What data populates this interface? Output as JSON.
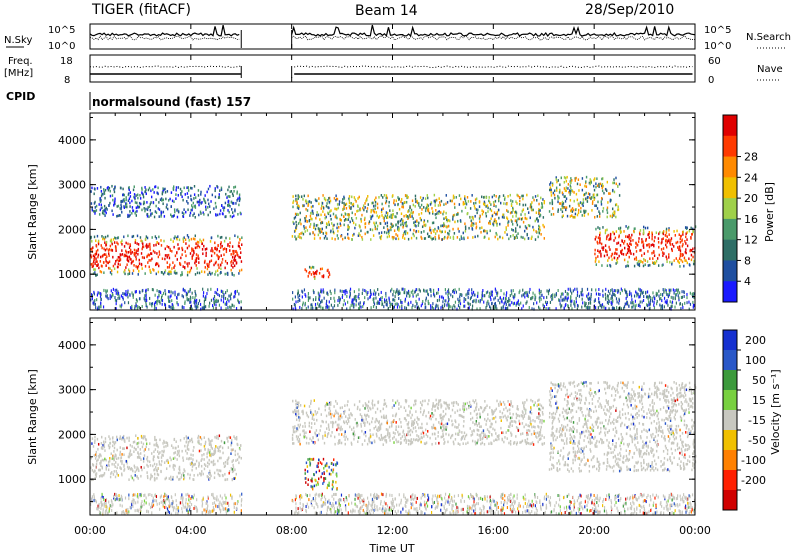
{
  "header": {
    "radar": "TIGER (fitACF)",
    "beam": "Beam 14",
    "date": "28/Sep/2010"
  },
  "sky_panel": {
    "left_label": "N.Sky",
    "right_label": "N.Search",
    "right_label_style": "dotted",
    "left_ticks": [
      "10^5",
      "10^0"
    ],
    "right_ticks": [
      "10^5",
      "10^0"
    ]
  },
  "freq_panel": {
    "left_label_line1": "Freq.",
    "left_label_line2": "[MHz]",
    "right_label": "Nave",
    "right_label_style": "dotted",
    "left_ticks": [
      "18",
      "8"
    ],
    "right_ticks": [
      "60",
      "0"
    ]
  },
  "cpid": {
    "label": "CPID",
    "program": "normalsound (fast) 157"
  },
  "colors": {
    "power_scale": [
      "#1a1aff",
      "#1f4fa0",
      "#2e6e66",
      "#4a9a6a",
      "#9fd04a",
      "#f0c000",
      "#ff8a00",
      "#ff3a00",
      "#e00000"
    ],
    "velocity_scale": [
      "#1530d0",
      "#2a58c8",
      "#3c9a3c",
      "#78d040",
      "#c8c8c0",
      "#f0c000",
      "#ff8000",
      "#ff2000",
      "#d00000"
    ]
  },
  "chart_data": [
    {
      "type": "heatmap",
      "panel": "power",
      "ylabel": "Slant Range [km]",
      "y_ticks": [
        "1000",
        "2000",
        "3000",
        "4000"
      ],
      "ylim": [
        200,
        4600
      ],
      "xlim_hours": [
        0,
        24
      ],
      "colorbar_label": "Power [dB]",
      "colorbar_ticks": [
        "4",
        "8",
        "12",
        "16",
        "20",
        "24",
        "28"
      ],
      "data_gap_hours": [
        6,
        8
      ],
      "scatter_regions": [
        {
          "start": 0,
          "end": 6,
          "range_low": 1000,
          "range_high": 1900,
          "level": "high"
        },
        {
          "start": 0,
          "end": 6,
          "range_low": 2300,
          "range_high": 3000,
          "level": "low"
        },
        {
          "start": 8,
          "end": 18,
          "range_low": 1800,
          "range_high": 2800,
          "level": "mid"
        },
        {
          "start": 8.5,
          "end": 9.5,
          "range_low": 900,
          "range_high": 1200,
          "level": "high"
        },
        {
          "start": 18.2,
          "end": 21,
          "range_low": 2300,
          "range_high": 3200,
          "level": "mid"
        },
        {
          "start": 20,
          "end": 24,
          "range_low": 1200,
          "range_high": 2100,
          "level": "high"
        }
      ]
    },
    {
      "type": "heatmap",
      "panel": "velocity",
      "ylabel": "Slant Range [km]",
      "y_ticks": [
        "1000",
        "2000",
        "3000",
        "4000"
      ],
      "ylim": [
        200,
        4600
      ],
      "xlim_hours": [
        0,
        24
      ],
      "colorbar_label": "Velocity [m s⁻¹]",
      "colorbar_ticks": [
        "200",
        "100",
        "50",
        "15",
        "-15",
        "-50",
        "-100",
        "-200"
      ],
      "x_ticks": [
        "00:00",
        "04:00",
        "08:00",
        "12:00",
        "16:00",
        "20:00",
        "00:00"
      ],
      "xlabel": "Time UT",
      "data_gap_hours": [
        6,
        8
      ],
      "scatter_regions": [
        {
          "start": 0,
          "end": 6,
          "range_low": 1000,
          "range_high": 2000,
          "level": "ground"
        },
        {
          "start": 8,
          "end": 18,
          "range_low": 1800,
          "range_high": 2800,
          "level": "ground"
        },
        {
          "start": 8.5,
          "end": 9.8,
          "range_low": 800,
          "range_high": 1500,
          "level": "mixed"
        },
        {
          "start": 18.2,
          "end": 24,
          "range_low": 1200,
          "range_high": 3200,
          "level": "ground"
        }
      ]
    }
  ]
}
